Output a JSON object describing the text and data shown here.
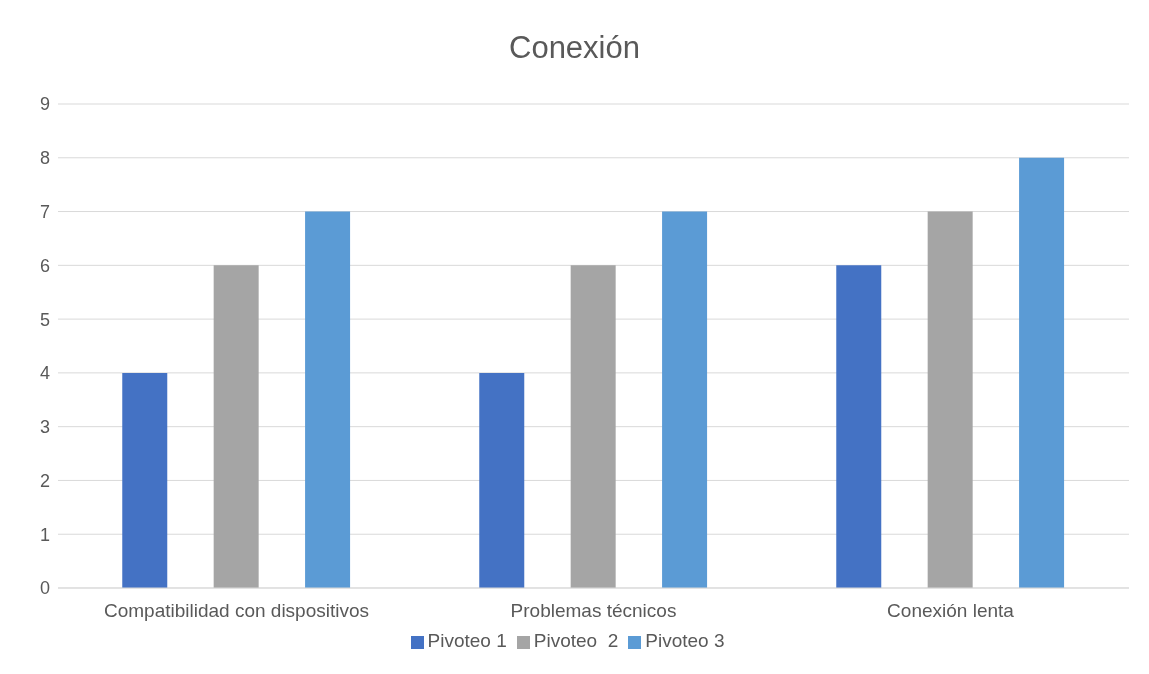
{
  "chart_data": {
    "type": "bar",
    "title": "Conexión",
    "categories": [
      "Compatibilidad con dispositivos",
      "Problemas técnicos",
      "Conexión lenta"
    ],
    "series": [
      {
        "name": "Pivoteo 1",
        "color": "#4472c4",
        "values": [
          4,
          4,
          6
        ]
      },
      {
        "name": "Pivoteo  2",
        "color": "#a5a5a5",
        "values": [
          6,
          6,
          7
        ]
      },
      {
        "name": "Pivoteo 3",
        "color": "#5b9bd5",
        "values": [
          7,
          7,
          8
        ]
      }
    ],
    "ylim": [
      0,
      9
    ],
    "yticks": [
      0,
      1,
      2,
      3,
      4,
      5,
      6,
      7,
      8,
      9
    ],
    "grid": "y",
    "legend": "bottom"
  }
}
